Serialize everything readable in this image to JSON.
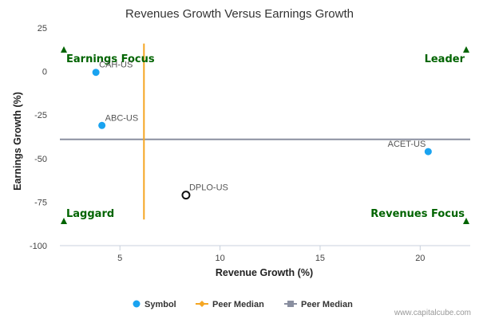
{
  "chart_data": {
    "type": "scatter",
    "title": "Revenues Growth Versus Earnings Growth",
    "xlabel": "Revenue Growth (%)",
    "ylabel": "Earnings Growth (%)",
    "xlim": [
      2,
      22.5
    ],
    "ylim": [
      -100,
      25
    ],
    "x_ticks": [
      5,
      10,
      15,
      20
    ],
    "y_ticks": [
      25,
      0,
      -25,
      -50,
      -75,
      -100
    ],
    "x_tick_labels": [
      "5",
      "10",
      "15",
      "20"
    ],
    "y_tick_labels": [
      "25",
      "0",
      "-25",
      "-50",
      "-75",
      "-100"
    ],
    "points": [
      {
        "label": "CAH-US",
        "x": 3.8,
        "y": -0.5,
        "style": "filled"
      },
      {
        "label": "ABC-US",
        "x": 4.1,
        "y": -31,
        "style": "filled"
      },
      {
        "label": "ACET-US",
        "x": 20.4,
        "y": -46,
        "style": "filled"
      },
      {
        "label": "DPLO-US",
        "x": 8.3,
        "y": -71,
        "style": "hollow"
      }
    ],
    "peer_median_x": 6.2,
    "peer_median_y": -39,
    "quadrants": {
      "top_left": "Earnings Focus",
      "top_right": "Leader",
      "bottom_left": "Laggard",
      "bottom_right": "Revenues Focus"
    },
    "legend": [
      {
        "label": "Symbol",
        "color": "#1aa3f0",
        "marker": "circle"
      },
      {
        "label": "Peer Median",
        "color": "#f5a623",
        "marker": "diamond"
      },
      {
        "label": "Peer Median",
        "color": "#8a8fa0",
        "marker": "square"
      }
    ],
    "grid": false,
    "legend_position": "bottom-center"
  },
  "colors": {
    "point_fill": "#1aa3f0",
    "hollow_stroke": "#111111",
    "vertical_median": "#f5a623",
    "horizontal_median": "#8a8fa0",
    "quadrant_text": "#006400",
    "axis_line": "#c8d0dc"
  },
  "credit": "www.capitalcube.com"
}
